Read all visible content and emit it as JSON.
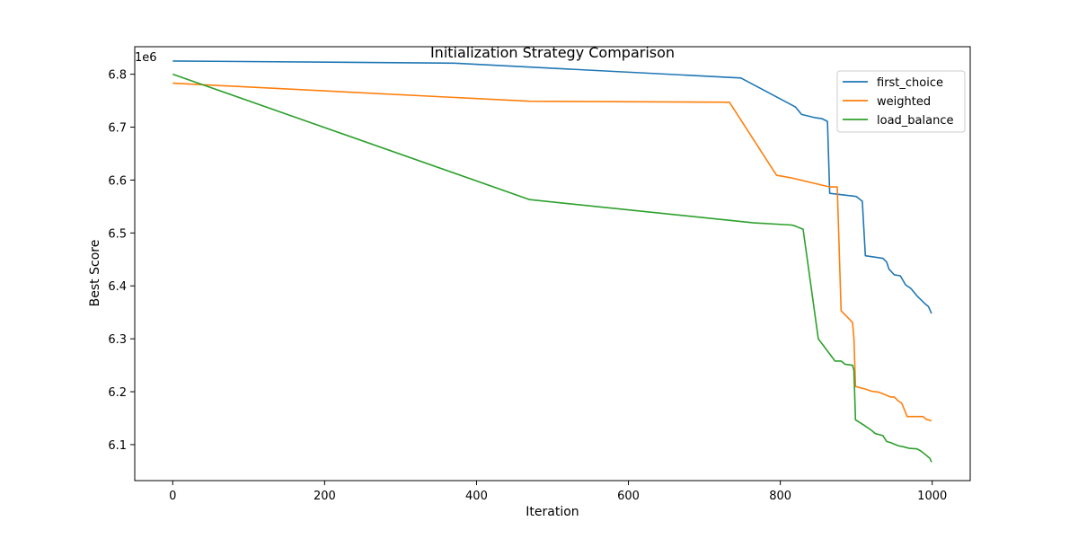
{
  "chart_data": {
    "type": "line",
    "title": "Initialization Strategy Comparison",
    "xlabel": "Iteration",
    "ylabel": "Best Score",
    "y_offset_label": "1e6",
    "xlim": [
      -50,
      1050
    ],
    "ylim": [
      6032000,
      6852000
    ],
    "x_ticks": [
      0,
      200,
      400,
      600,
      800,
      1000
    ],
    "y_ticks": [
      6100000,
      6200000,
      6300000,
      6400000,
      6500000,
      6600000,
      6700000,
      6800000
    ],
    "y_tick_labels": [
      "6.1",
      "6.2",
      "6.3",
      "6.4",
      "6.5",
      "6.6",
      "6.7",
      "6.8"
    ],
    "legend_position": "top-right",
    "grid": false,
    "series": [
      {
        "name": "first_choice",
        "color": "#1f77b4",
        "points": [
          [
            0,
            6825000
          ],
          [
            370,
            6821000
          ],
          [
            748,
            6793000
          ],
          [
            820,
            6738000
          ],
          [
            828,
            6724000
          ],
          [
            845,
            6718000
          ],
          [
            855,
            6716000
          ],
          [
            862,
            6711000
          ],
          [
            865,
            6575000
          ],
          [
            900,
            6569000
          ],
          [
            908,
            6560000
          ],
          [
            912,
            6457000
          ],
          [
            935,
            6452000
          ],
          [
            940,
            6445000
          ],
          [
            943,
            6432000
          ],
          [
            950,
            6421000
          ],
          [
            958,
            6419000
          ],
          [
            965,
            6402000
          ],
          [
            972,
            6395000
          ],
          [
            980,
            6381000
          ],
          [
            990,
            6367000
          ],
          [
            995,
            6361000
          ],
          [
            999,
            6348000
          ]
        ]
      },
      {
        "name": "weighted",
        "color": "#ff7f0e",
        "points": [
          [
            0,
            6783000
          ],
          [
            470,
            6749000
          ],
          [
            733,
            6747000
          ],
          [
            795,
            6609000
          ],
          [
            815,
            6604000
          ],
          [
            865,
            6587000
          ],
          [
            875,
            6587000
          ],
          [
            880,
            6353000
          ],
          [
            895,
            6331000
          ],
          [
            897,
            6300000
          ],
          [
            899,
            6210000
          ],
          [
            912,
            6205000
          ],
          [
            920,
            6201000
          ],
          [
            930,
            6199000
          ],
          [
            945,
            6190000
          ],
          [
            950,
            6190000
          ],
          [
            955,
            6183000
          ],
          [
            960,
            6178000
          ],
          [
            967,
            6153000
          ],
          [
            988,
            6153000
          ],
          [
            992,
            6148000
          ],
          [
            999,
            6145000
          ]
        ]
      },
      {
        "name": "load_balance",
        "color": "#2ca02c",
        "points": [
          [
            0,
            6800000
          ],
          [
            470,
            6563000
          ],
          [
            765,
            6519000
          ],
          [
            815,
            6515000
          ],
          [
            820,
            6513000
          ],
          [
            830,
            6507000
          ],
          [
            850,
            6300000
          ],
          [
            872,
            6258000
          ],
          [
            880,
            6258000
          ],
          [
            885,
            6252000
          ],
          [
            895,
            6250000
          ],
          [
            897,
            6240000
          ],
          [
            899,
            6147000
          ],
          [
            910,
            6137000
          ],
          [
            920,
            6127000
          ],
          [
            925,
            6121000
          ],
          [
            935,
            6117000
          ],
          [
            940,
            6106000
          ],
          [
            945,
            6104000
          ],
          [
            950,
            6101000
          ],
          [
            955,
            6098000
          ],
          [
            962,
            6096000
          ],
          [
            970,
            6093000
          ],
          [
            980,
            6092000
          ],
          [
            985,
            6088000
          ],
          [
            992,
            6080000
          ],
          [
            997,
            6074000
          ],
          [
            999,
            6067000
          ]
        ]
      }
    ]
  }
}
